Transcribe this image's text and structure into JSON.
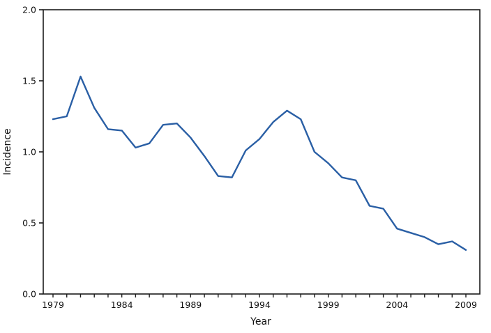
{
  "chart_data": {
    "type": "line",
    "title": "",
    "xlabel": "Year",
    "ylabel": "Incidence",
    "x": [
      1979,
      1980,
      1981,
      1982,
      1983,
      1984,
      1985,
      1986,
      1987,
      1988,
      1989,
      1990,
      1991,
      1992,
      1993,
      1994,
      1995,
      1996,
      1997,
      1998,
      1999,
      2000,
      2001,
      2002,
      2003,
      2004,
      2005,
      2006,
      2007,
      2008,
      2009
    ],
    "series": [
      {
        "name": "Incidence",
        "values": [
          1.23,
          1.25,
          1.53,
          1.31,
          1.16,
          1.15,
          1.03,
          1.06,
          1.19,
          1.2,
          1.1,
          0.97,
          0.83,
          0.82,
          1.01,
          1.09,
          1.21,
          1.29,
          1.23,
          1.0,
          0.92,
          0.82,
          0.8,
          0.62,
          0.6,
          0.46,
          0.43,
          0.4,
          0.35,
          0.37,
          0.31
        ]
      }
    ],
    "xlim": [
      1979,
      2009
    ],
    "ylim": [
      0.0,
      2.0
    ],
    "yticks": [
      0.0,
      0.5,
      1.0,
      1.5,
      2.0
    ],
    "ytick_labels": [
      "0.0",
      "0.5",
      "1.0",
      "1.5",
      "2.0"
    ],
    "xticks_labeled": [
      1979,
      1984,
      1989,
      1994,
      1999,
      2004,
      2009
    ],
    "xtick_labels": [
      "1979",
      "1984",
      "1989",
      "1994",
      "1999",
      "2004",
      "2009"
    ],
    "grid": false,
    "legend": "none",
    "line_color": "#2a5fa5",
    "axis_color": "#1a1a1a",
    "background_color": "#ffffff"
  }
}
